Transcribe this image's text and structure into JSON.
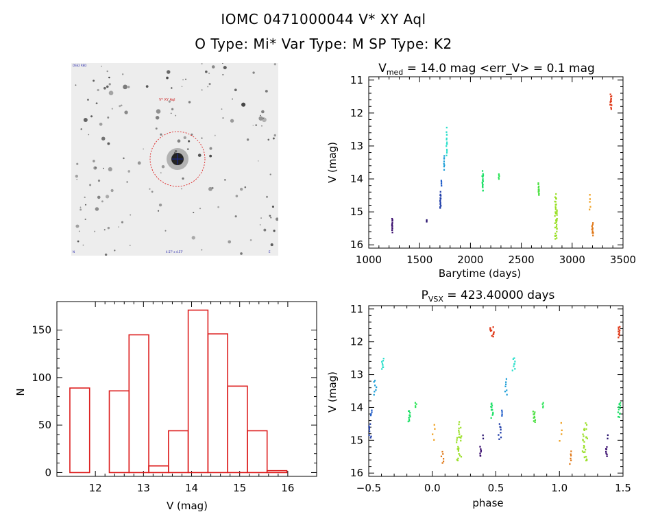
{
  "header": {
    "title": "IOMC 0471000044    V* XY Aql",
    "subtitle": "O Type: Mi*   Var Type: M   SP Type: K2"
  },
  "finder": {
    "label_top_left": "DSS2 RED",
    "label_target": "V* XY Aql",
    "label_bottom_left": "N",
    "label_bottom_center": "4.57' x 4.57'",
    "label_bottom_right": "E"
  },
  "chart_data": [
    {
      "id": "lightcurve",
      "type": "scatter",
      "title_prefix": "V",
      "title_sub": "med",
      "title_suffix": " = 14.0 mag <err_V> = 0.1 mag",
      "xlabel": "Barytime (days)",
      "ylabel": "V (mag)",
      "xlim": [
        1000,
        3500
      ],
      "ylim": [
        16.1,
        10.9
      ],
      "xticks": [
        1000,
        1500,
        2000,
        2500,
        3000,
        3500
      ],
      "yticks": [
        11,
        12,
        13,
        14,
        15,
        16
      ],
      "clusters": [
        {
          "x": 1230,
          "y_range": [
            15.2,
            15.6
          ],
          "color": "#3b0f6f",
          "n": 14,
          "spread": 6
        },
        {
          "x": 1570,
          "y_range": [
            15.25,
            15.3
          ],
          "color": "#2a1470",
          "n": 3,
          "spread": 4
        },
        {
          "x": 1705,
          "y_range": [
            14.4,
            14.9
          ],
          "color": "#1f3da8",
          "n": 14,
          "spread": 8
        },
        {
          "x": 1715,
          "y_range": [
            14.05,
            14.2
          ],
          "color": "#1f5cc9",
          "n": 4,
          "spread": 4
        },
        {
          "x": 1740,
          "y_range": [
            13.3,
            13.7
          ],
          "color": "#1f9fd8",
          "n": 8,
          "spread": 6
        },
        {
          "x": 1765,
          "y_range": [
            12.5,
            13.3
          ],
          "color": "#2fe0cc",
          "n": 14,
          "spread": 10
        },
        {
          "x": 2120,
          "y_range": [
            13.8,
            14.35
          ],
          "color": "#1fe068",
          "n": 18,
          "spread": 10
        },
        {
          "x": 2280,
          "y_range": [
            13.85,
            14.0
          ],
          "color": "#2fe45a",
          "n": 5,
          "spread": 6
        },
        {
          "x": 2670,
          "y_range": [
            14.15,
            14.5
          ],
          "color": "#4be040",
          "n": 12,
          "spread": 8
        },
        {
          "x": 2840,
          "y_range": [
            14.5,
            15.8
          ],
          "color": "#9be02a",
          "n": 40,
          "spread": 22
        },
        {
          "x": 3175,
          "y_range": [
            14.5,
            14.95
          ],
          "color": "#f0a020",
          "n": 5,
          "spread": 10
        },
        {
          "x": 3200,
          "y_range": [
            15.35,
            15.7
          ],
          "color": "#e07818",
          "n": 10,
          "spread": 14
        },
        {
          "x": 3380,
          "y_range": [
            11.45,
            11.85
          ],
          "color": "#e03a1a",
          "n": 14,
          "spread": 14
        }
      ]
    },
    {
      "id": "phase",
      "type": "scatter",
      "title_prefix": "P",
      "title_sub": "VSX",
      "title_suffix": " = 423.40000 days",
      "xlabel": "phase",
      "ylabel": "V (mag)",
      "xlim": [
        -0.5,
        1.5
      ],
      "ylim": [
        16.1,
        10.9
      ],
      "xticks": [
        -0.5,
        0.0,
        0.5,
        1.0,
        1.5
      ],
      "xtick_labels": [
        "−0.5",
        "0.0",
        "0.5",
        "1.0",
        "1.5"
      ],
      "yticks": [
        11,
        12,
        13,
        14,
        15,
        16
      ],
      "clusters": [
        {
          "x": -0.39,
          "y_range": [
            12.5,
            12.85
          ],
          "color": "#2fe0cc",
          "n": 8,
          "spread": 0.02
        },
        {
          "x": -0.45,
          "y_range": [
            13.15,
            13.6
          ],
          "color": "#1f9fd8",
          "n": 7,
          "spread": 0.02
        },
        {
          "x": -0.48,
          "y_range": [
            14.1,
            14.25
          ],
          "color": "#1f5cc9",
          "n": 4,
          "spread": 0.01
        },
        {
          "x": -0.49,
          "y_range": [
            14.5,
            14.95
          ],
          "color": "#1f3da8",
          "n": 8,
          "spread": 0.02
        },
        {
          "x": -0.18,
          "y_range": [
            14.1,
            14.45
          ],
          "color": "#1fe068",
          "n": 10,
          "spread": 0.02
        },
        {
          "x": -0.13,
          "y_range": [
            13.85,
            14.0
          ],
          "color": "#2fe45a",
          "n": 4,
          "spread": 0.01
        },
        {
          "x": 0.01,
          "y_range": [
            14.5,
            15.0
          ],
          "color": "#f0a020",
          "n": 4,
          "spread": 0.02
        },
        {
          "x": 0.08,
          "y_range": [
            15.35,
            15.7
          ],
          "color": "#e07818",
          "n": 6,
          "spread": 0.02
        },
        {
          "x": 0.21,
          "y_range": [
            14.5,
            15.6
          ],
          "color": "#9be02a",
          "n": 26,
          "spread": 0.04
        },
        {
          "x": 0.38,
          "y_range": [
            15.2,
            15.5
          ],
          "color": "#3b0f6f",
          "n": 7,
          "spread": 0.01
        },
        {
          "x": 0.4,
          "y_range": [
            14.85,
            14.95
          ],
          "color": "#2a1470",
          "n": 2,
          "spread": 0.005
        },
        {
          "x": 0.47,
          "y_range": [
            11.55,
            11.85
          ],
          "color": "#e03a1a",
          "n": 12,
          "spread": 0.03
        },
        {
          "x": 0.47,
          "y_range": [
            13.85,
            14.3
          ],
          "color": "#1fe068",
          "n": 12,
          "spread": 0.02
        },
        {
          "x": 0.53,
          "y_range": [
            14.5,
            14.95
          ],
          "color": "#1f3da8",
          "n": 8,
          "spread": 0.02
        },
        {
          "x": 0.55,
          "y_range": [
            14.1,
            14.25
          ],
          "color": "#1f5cc9",
          "n": 4,
          "spread": 0.01
        },
        {
          "x": 0.58,
          "y_range": [
            13.15,
            13.6
          ],
          "color": "#1f9fd8",
          "n": 7,
          "spread": 0.02
        },
        {
          "x": 0.64,
          "y_range": [
            12.5,
            12.85
          ],
          "color": "#2fe0cc",
          "n": 8,
          "spread": 0.02
        },
        {
          "x": 0.8,
          "y_range": [
            14.1,
            14.45
          ],
          "color": "#4be040",
          "n": 10,
          "spread": 0.02
        },
        {
          "x": 0.87,
          "y_range": [
            13.85,
            14.0
          ],
          "color": "#2fe45a",
          "n": 4,
          "spread": 0.01
        },
        {
          "x": 1.01,
          "y_range": [
            14.5,
            15.0
          ],
          "color": "#f0a020",
          "n": 4,
          "spread": 0.02
        },
        {
          "x": 1.09,
          "y_range": [
            15.35,
            15.7
          ],
          "color": "#e07818",
          "n": 6,
          "spread": 0.02
        },
        {
          "x": 1.2,
          "y_range": [
            14.5,
            15.6
          ],
          "color": "#9be02a",
          "n": 26,
          "spread": 0.04
        },
        {
          "x": 1.37,
          "y_range": [
            15.2,
            15.5
          ],
          "color": "#3b0f6f",
          "n": 7,
          "spread": 0.01
        },
        {
          "x": 1.38,
          "y_range": [
            14.85,
            14.95
          ],
          "color": "#2a1470",
          "n": 2,
          "spread": 0.005
        },
        {
          "x": 1.47,
          "y_range": [
            11.55,
            11.85
          ],
          "color": "#e03a1a",
          "n": 10,
          "spread": 0.02
        },
        {
          "x": 1.47,
          "y_range": [
            13.85,
            14.3
          ],
          "color": "#1fe068",
          "n": 12,
          "spread": 0.02
        }
      ]
    },
    {
      "id": "histogram",
      "type": "bar",
      "xlabel": "V (mag)",
      "ylabel": "N",
      "xlim": [
        11.2,
        16.6
      ],
      "ylim": [
        -4,
        180
      ],
      "xticks": [
        12,
        13,
        14,
        15,
        16
      ],
      "yticks": [
        0,
        50,
        100,
        150
      ],
      "bin_edges": [
        11.47,
        11.88,
        12.29,
        12.7,
        13.11,
        13.52,
        13.93,
        14.34,
        14.75,
        15.16,
        15.57,
        15.98
      ],
      "values": [
        89,
        0,
        86,
        145,
        7,
        44,
        171,
        146,
        91,
        44,
        2
      ],
      "color": "#dd1e1e"
    }
  ]
}
